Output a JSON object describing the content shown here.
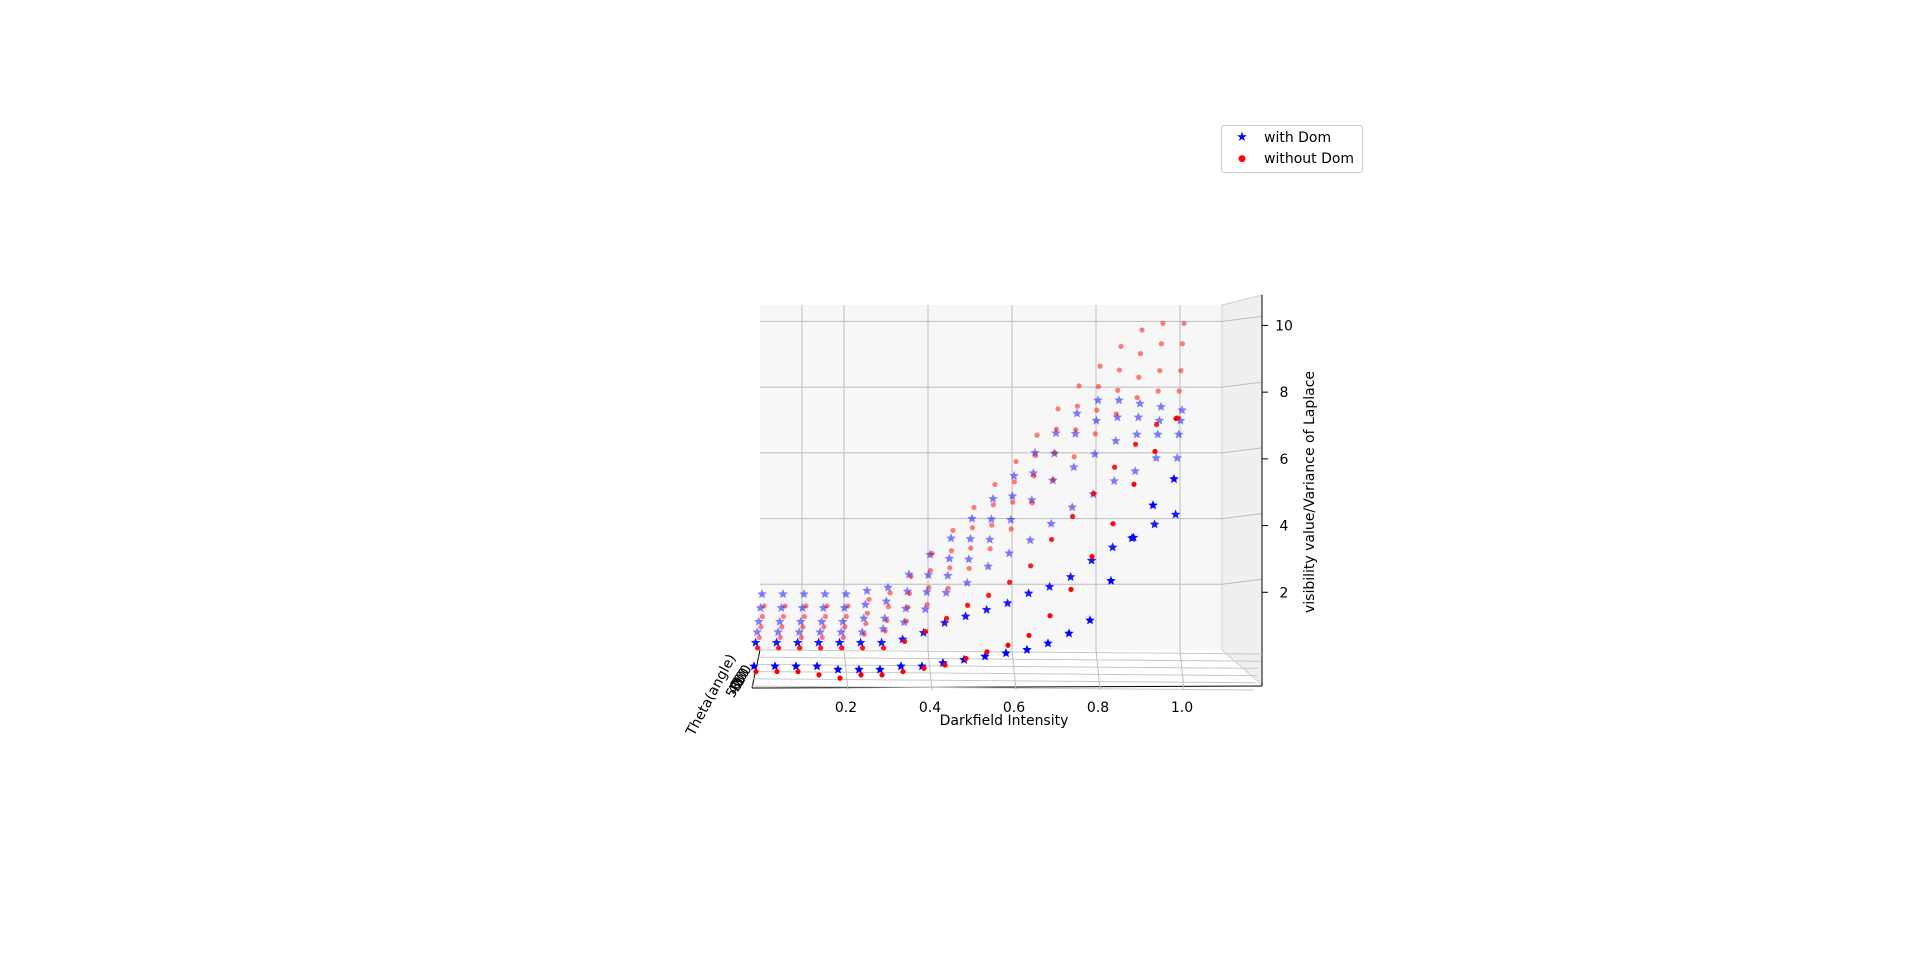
{
  "chart_data": {
    "type": "scatter",
    "projection": "3d",
    "xlabel": "Darkfield Intensity",
    "ylabel": "Theta(angle)",
    "zlabel": "visibility value/Variance of Laplace",
    "x_ticks": [
      "0.2",
      "0.4",
      "0.6",
      "0.8",
      "1.0"
    ],
    "y_tick_values": [
      0,
      10,
      20,
      30,
      40,
      50
    ],
    "z_ticks": [
      "2",
      "4",
      "6",
      "8",
      "10"
    ],
    "xlim": [
      0.0,
      1.1
    ],
    "ylim": [
      0,
      50
    ],
    "zlim": [
      0,
      10.5
    ],
    "grid": true,
    "legend_position": "top-right",
    "x_values": [
      0.0,
      0.05,
      0.1,
      0.15,
      0.2,
      0.25,
      0.3,
      0.35,
      0.4,
      0.45,
      0.5,
      0.55,
      0.6,
      0.65,
      0.7,
      0.75,
      0.8,
      0.85,
      0.9,
      0.95,
      1.0
    ],
    "theta_values": [
      0,
      10,
      20,
      30,
      40,
      50
    ],
    "series": [
      {
        "name": "with Dom",
        "color": "#0000ff",
        "marker": "star",
        "values_by_theta": [
          [
            0.6,
            0.6,
            0.6,
            0.6,
            0.5,
            0.5,
            0.5,
            0.6,
            0.6,
            0.7,
            0.8,
            0.9,
            1.0,
            1.1,
            1.3,
            1.6,
            2.0,
            3.2,
            4.5,
            5.5,
            6.3
          ],
          [
            1.1,
            1.1,
            1.1,
            1.1,
            1.1,
            1.1,
            1.1,
            1.2,
            1.4,
            1.7,
            1.9,
            2.1,
            2.3,
            2.6,
            2.8,
            3.1,
            3.6,
            4.0,
            4.3,
            4.7,
            5.0
          ],
          [
            1.2,
            1.2,
            1.2,
            1.2,
            1.2,
            1.2,
            1.3,
            1.5,
            1.9,
            2.4,
            2.7,
            3.2,
            3.6,
            4.0,
            4.5,
            5.0,
            5.4,
            5.8,
            6.1,
            6.5,
            6.5
          ],
          [
            1.3,
            1.3,
            1.3,
            1.3,
            1.3,
            1.4,
            1.4,
            1.7,
            2.2,
            2.7,
            3.2,
            3.8,
            4.4,
            5.0,
            5.6,
            6.0,
            6.4,
            6.8,
            7.0,
            7.0,
            7.0
          ],
          [
            1.5,
            1.5,
            1.5,
            1.5,
            1.5,
            1.6,
            1.7,
            2.0,
            2.5,
            3.0,
            3.6,
            4.2,
            4.9,
            5.6,
            6.2,
            6.8,
            7.2,
            7.3,
            7.3,
            7.2,
            7.2
          ],
          [
            1.7,
            1.7,
            1.7,
            1.7,
            1.7,
            1.8,
            1.9,
            2.3,
            2.9,
            3.4,
            4.0,
            4.6,
            5.3,
            6.0,
            6.6,
            7.2,
            7.6,
            7.6,
            7.5,
            7.4,
            7.3
          ]
        ]
      },
      {
        "name": "without Dom",
        "color": "#ff0000",
        "marker": "dot",
        "values_by_theta": [
          [
            0.5,
            0.5,
            0.5,
            0.4,
            0.3,
            0.4,
            0.4,
            0.5,
            0.6,
            0.7,
            0.9,
            1.1,
            1.3,
            1.6,
            2.2,
            3.0,
            4.0,
            5.0,
            6.2,
            7.2,
            8.2
          ],
          [
            1.0,
            1.0,
            1.0,
            1.0,
            1.0,
            1.0,
            1.0,
            1.2,
            1.5,
            1.9,
            2.3,
            2.6,
            3.0,
            3.5,
            4.3,
            5.0,
            5.7,
            6.5,
            7.2,
            7.8,
            8.0
          ],
          [
            1.1,
            1.1,
            1.1,
            1.1,
            1.1,
            1.2,
            1.3,
            1.6,
            2.1,
            2.6,
            3.2,
            3.8,
            4.4,
            5.2,
            5.9,
            6.6,
            7.3,
            7.9,
            8.4,
            8.6,
            8.6
          ],
          [
            1.2,
            1.2,
            1.2,
            1.2,
            1.2,
            1.3,
            1.4,
            1.8,
            2.4,
            3.0,
            3.6,
            4.3,
            5.0,
            5.8,
            6.5,
            7.2,
            7.8,
            8.4,
            8.8,
            9.0,
            9.0
          ],
          [
            1.3,
            1.3,
            1.3,
            1.3,
            1.3,
            1.4,
            1.6,
            2.0,
            2.7,
            3.3,
            4.0,
            4.7,
            5.4,
            6.2,
            7.0,
            7.7,
            8.3,
            8.8,
            9.3,
            9.6,
            9.6
          ],
          [
            1.4,
            1.4,
            1.4,
            1.4,
            1.4,
            1.6,
            1.8,
            2.3,
            3.0,
            3.7,
            4.4,
            5.1,
            5.8,
            6.6,
            7.4,
            8.1,
            8.7,
            9.3,
            9.8,
            10.0,
            10.0
          ]
        ]
      }
    ]
  }
}
